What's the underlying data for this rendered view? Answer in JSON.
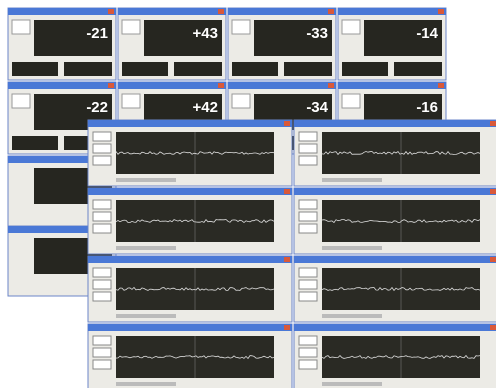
{
  "monitors": [
    {
      "reading": "-21"
    },
    {
      "reading": "+43"
    },
    {
      "reading": "-33"
    },
    {
      "reading": "-14"
    },
    {
      "reading": "-22"
    },
    {
      "reading": "+42"
    },
    {
      "reading": "-34"
    },
    {
      "reading": "-16"
    }
  ]
}
